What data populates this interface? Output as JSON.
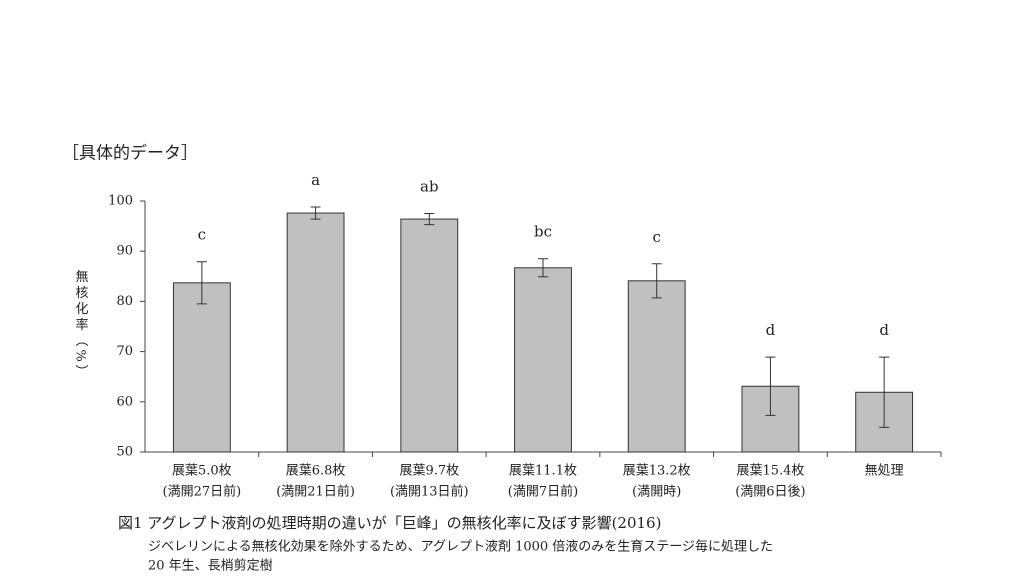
{
  "header": "［具体的データ］",
  "chart_data": {
    "type": "bar",
    "ylabel": "無核化率（%）",
    "categories": [
      "展葉5.0枚",
      "展葉6.8枚",
      "展葉9.7枚",
      "展葉11.1枚",
      "展葉13.2枚",
      "展葉15.4枚",
      "無処理"
    ],
    "category_sublabels": [
      "(満開27日前)",
      "(満開21日前)",
      "(満開13日前)",
      "(満開7日前)",
      "(満開時)",
      "(満開6日後)",
      null
    ],
    "values": [
      83.7,
      97.6,
      96.4,
      86.7,
      84.1,
      63.1,
      61.9
    ],
    "errors": [
      4.2,
      1.2,
      1.1,
      1.8,
      3.4,
      5.8,
      7.0
    ],
    "letters": [
      "c",
      "a",
      "ab",
      "bc",
      "c",
      "d",
      "d"
    ],
    "color": "#c0c0c0",
    "ylim": [
      50,
      100
    ],
    "yticks": [
      50,
      60,
      70,
      80,
      90,
      100
    ]
  },
  "caption": "図1  アグレプト液剤の処理時期の違いが「巨峰」の無核化率に及ぼす影響(2016)",
  "notes": [
    "ジベレリンによる無核化効果を除外するため、アグレプト液剤 1000 倍液のみを生育ステージ毎に処理した",
    "20 年生、長梢剪定樹"
  ]
}
